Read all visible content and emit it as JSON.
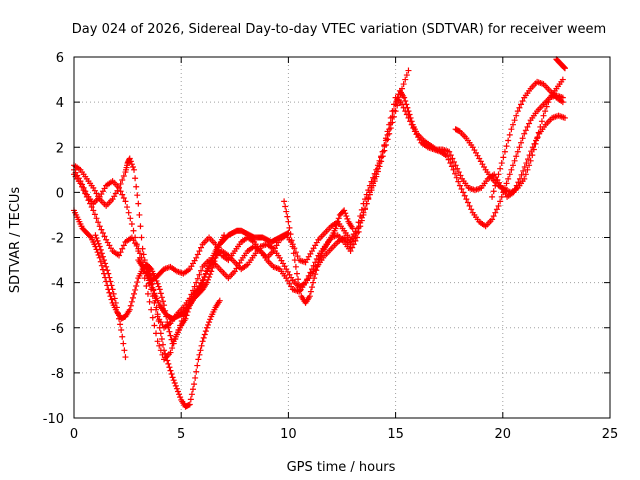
{
  "chart_data": {
    "type": "scatter",
    "title": "Day 024 of 2026, Sidereal Day-to-day VTEC variation (SDTVAR) for receiver weem",
    "xlabel": "GPS time / hours",
    "ylabel": "SDTVAR / TECUs",
    "xlim": [
      0,
      25
    ],
    "ylim": [
      -10,
      6
    ],
    "xticks": [
      0,
      5,
      10,
      15,
      20,
      25
    ],
    "yticks": [
      -10,
      -8,
      -6,
      -4,
      -2,
      0,
      2,
      4,
      6
    ],
    "xtick_labels": [
      "0",
      "5",
      "10",
      "15",
      "20",
      "25"
    ],
    "ytick_labels": [
      "-10",
      "-8",
      "-6",
      "-4",
      "-2",
      "0",
      "2",
      "4",
      "6"
    ],
    "grid": true,
    "marker": "plus",
    "color": "#ff0000",
    "series": [
      {
        "x": [
          0.0,
          0.3,
          0.6,
          0.9,
          1.2,
          1.5,
          1.8,
          2.1,
          2.4,
          2.5,
          2.6,
          2.8,
          3.0,
          3.2,
          3.4,
          3.6,
          3.8,
          4.0,
          4.2,
          4.5,
          4.8,
          5.1,
          5.4,
          5.7,
          6.0,
          6.3,
          6.6,
          6.9,
          7.2,
          7.5,
          7.8,
          8.1,
          8.4,
          8.7,
          9.0,
          9.3,
          9.6,
          9.9,
          10.2,
          10.5,
          10.8,
          11.1,
          11.4,
          11.7,
          12.0,
          12.3,
          12.6,
          12.9,
          13.2,
          13.5,
          13.8,
          14.1,
          14.4,
          14.7,
          15.0,
          15.2,
          15.4,
          15.6,
          15.8,
          16.0,
          16.3,
          16.6,
          16.9,
          17.2,
          17.5,
          17.8,
          18.1,
          18.4,
          18.7,
          19.0,
          19.3,
          19.6,
          19.9,
          20.2,
          20.5,
          20.8,
          21.1,
          21.4,
          21.7,
          22.0,
          22.3,
          22.6,
          22.9
        ],
        "y": [
          1.2,
          1.0,
          0.6,
          0.2,
          -0.3,
          -0.6,
          -0.3,
          0.2,
          0.9,
          1.3,
          1.5,
          1.0,
          -0.5,
          -2.5,
          -3.5,
          -3.9,
          -3.8,
          -3.6,
          -3.4,
          -3.3,
          -3.5,
          -3.6,
          -3.4,
          -2.9,
          -2.3,
          -2.0,
          -2.3,
          -2.8,
          -3.0,
          -2.6,
          -2.2,
          -2.0,
          -2.2,
          -2.6,
          -2.9,
          -2.6,
          -2.1,
          -1.9,
          -2.3,
          -3.0,
          -3.1,
          -2.6,
          -2.1,
          -1.8,
          -1.5,
          -1.3,
          -1.7,
          -2.1,
          -1.6,
          -0.5,
          0.3,
          1.0,
          1.8,
          2.8,
          3.9,
          4.5,
          4.2,
          3.6,
          3.0,
          2.6,
          2.3,
          2.1,
          1.9,
          1.9,
          1.8,
          1.2,
          0.6,
          0.2,
          0.1,
          0.2,
          0.6,
          0.8,
          0.3,
          -0.2,
          0.0,
          0.6,
          1.3,
          2.0,
          2.6,
          3.0,
          3.3,
          3.4,
          3.3
        ]
      },
      {
        "x": [
          0.0,
          0.3,
          0.6,
          0.9,
          1.2,
          1.5,
          1.8,
          2.1,
          2.4,
          2.7,
          3.0,
          3.3,
          3.6,
          3.9,
          4.2,
          4.5,
          4.8,
          5.1,
          5.4,
          5.7,
          6.0,
          6.3,
          6.6,
          6.9,
          7.2,
          7.5,
          7.8,
          8.1,
          8.4,
          8.7,
          9.0,
          9.3,
          9.6,
          9.9,
          10.2,
          10.5,
          10.8,
          11.1,
          11.4,
          11.7,
          12.0,
          12.3,
          12.6,
          12.9,
          13.2,
          13.5,
          13.8,
          14.1,
          14.4,
          14.7,
          15.0,
          15.3,
          15.6,
          15.9,
          16.2,
          16.5,
          16.8,
          17.1,
          17.4,
          17.7,
          18.0,
          18.3,
          18.6,
          18.9,
          19.2,
          19.5,
          19.8,
          20.1,
          20.4,
          20.7,
          21.0,
          21.3,
          21.6,
          21.9,
          22.2,
          22.5,
          22.8
        ],
        "y": [
          0.8,
          0.4,
          -0.2,
          -0.8,
          -1.5,
          -2.1,
          -2.6,
          -2.8,
          -2.2,
          -2.0,
          -2.5,
          -3.3,
          -4.3,
          -5.5,
          -6.0,
          -5.8,
          -5.4,
          -5.1,
          -4.7,
          -4.0,
          -3.3,
          -3.0,
          -3.2,
          -3.5,
          -3.8,
          -3.5,
          -3.0,
          -2.6,
          -2.4,
          -2.6,
          -3.0,
          -3.3,
          -3.4,
          -3.8,
          -4.3,
          -4.4,
          -4.0,
          -3.4,
          -2.8,
          -2.4,
          -2.0,
          -1.9,
          -2.2,
          -2.6,
          -2.0,
          -1.0,
          0.0,
          0.8,
          1.8,
          3.0,
          4.2,
          3.9,
          3.3,
          2.7,
          2.2,
          2.0,
          1.9,
          1.8,
          1.6,
          1.0,
          0.3,
          -0.3,
          -0.9,
          -1.3,
          -1.5,
          -1.2,
          -0.6,
          0.2,
          1.0,
          1.8,
          2.6,
          3.2,
          3.6,
          3.9,
          4.2,
          4.3,
          4.2
        ]
      },
      {
        "x": [
          0.0,
          0.3,
          0.6,
          0.9,
          1.2,
          1.5,
          1.8,
          2.1,
          2.4,
          2.7,
          3.0,
          3.3,
          3.6,
          3.9,
          4.2,
          4.5,
          4.8,
          5.1,
          5.4,
          5.7,
          6.0,
          6.3,
          6.6,
          6.9,
          7.2,
          7.5,
          7.8,
          8.1,
          8.4,
          8.7,
          9.0,
          9.3,
          9.6,
          9.9,
          10.2,
          10.5,
          10.8,
          11.1,
          11.4,
          11.7,
          12.0,
          12.3,
          12.6,
          12.9,
          13.2,
          13.5,
          13.8,
          14.1,
          14.4,
          14.7,
          15.0,
          15.3,
          15.6
        ],
        "y": [
          1.0,
          0.5,
          -0.1,
          -0.5,
          -0.2,
          0.3,
          0.5,
          0.2,
          -0.4,
          -1.4,
          -2.6,
          -3.8,
          -5.2,
          -6.6,
          -7.4,
          -7.1,
          -6.3,
          -5.5,
          -4.8,
          -4.4,
          -3.9,
          -3.3,
          -2.8,
          -2.6,
          -2.8,
          -3.1,
          -3.4,
          -3.2,
          -2.8,
          -2.4,
          -2.3,
          -2.5,
          -2.9,
          -3.4,
          -3.9,
          -4.2,
          -4.0,
          -3.6,
          -3.2,
          -2.8,
          -2.5,
          -2.2,
          -2.0,
          -2.3,
          -1.8,
          -0.9,
          -0.1,
          0.7,
          1.6,
          2.6,
          3.6,
          4.6,
          5.4
        ]
      },
      {
        "x": [
          0.0,
          0.2,
          0.4,
          0.6,
          0.8,
          1.0,
          1.2,
          1.4,
          1.6,
          1.8,
          2.0,
          2.2,
          2.4,
          2.6,
          2.8,
          3.0,
          3.2,
          3.4,
          3.6,
          3.8,
          4.0,
          4.2,
          4.4,
          4.6,
          4.8,
          5.0,
          5.2,
          5.4,
          5.6,
          5.8,
          6.0,
          6.2,
          6.4,
          6.6,
          6.8,
          7.0,
          7.2,
          7.4,
          7.6,
          7.8,
          8.0,
          8.2,
          8.4,
          8.6,
          8.8,
          9.0,
          9.2,
          9.4,
          9.6,
          9.8,
          10.0
        ],
        "y": [
          -0.8,
          -1.2,
          -1.6,
          -1.8,
          -2.0,
          -2.4,
          -2.9,
          -3.6,
          -4.3,
          -4.9,
          -5.3,
          -5.6,
          -5.5,
          -5.2,
          -4.5,
          -3.8,
          -3.4,
          -3.2,
          -3.4,
          -3.8,
          -4.3,
          -5.0,
          -6.0,
          -6.7,
          -6.3,
          -5.9,
          -5.6,
          -5.0,
          -4.5,
          -4.3,
          -4.0,
          -3.5,
          -3.0,
          -2.6,
          -2.3,
          -2.1,
          -1.9,
          -1.8,
          -1.7,
          -1.7,
          -1.8,
          -1.9,
          -2.0,
          -2.0,
          -2.0,
          -2.1,
          -2.2,
          -2.1,
          -2.0,
          -1.9,
          -1.8
        ]
      },
      {
        "x": [
          1.0,
          1.2,
          1.4,
          1.6,
          1.8,
          2.0,
          2.2,
          2.4
        ],
        "y": [
          -1.9,
          -2.4,
          -3.0,
          -3.6,
          -4.3,
          -5.1,
          -6.1,
          -7.3
        ]
      },
      {
        "x": [
          3.4,
          3.6,
          3.8,
          4.0,
          4.2,
          4.4,
          4.6,
          4.8,
          5.0,
          5.2,
          5.4,
          5.6,
          5.8,
          6.0,
          6.2,
          6.4,
          6.6,
          6.8
        ],
        "y": [
          -3.2,
          -3.8,
          -4.8,
          -6.0,
          -7.0,
          -7.6,
          -8.2,
          -8.7,
          -9.2,
          -9.5,
          -9.4,
          -8.5,
          -7.4,
          -6.6,
          -6.0,
          -5.5,
          -5.1,
          -4.8
        ]
      },
      {
        "x": [
          3.0,
          3.2,
          3.4,
          3.6,
          3.8,
          4.0,
          4.2,
          4.4,
          4.6,
          4.8,
          5.0,
          5.2,
          5.4,
          5.6,
          5.8,
          6.0,
          6.2,
          6.4,
          6.6,
          6.8,
          7.0
        ],
        "y": [
          -3.0,
          -3.3,
          -3.7,
          -4.1,
          -4.6,
          -5.0,
          -5.3,
          -5.5,
          -5.6,
          -5.5,
          -5.4,
          -5.3,
          -5.0,
          -4.7,
          -4.5,
          -4.3,
          -4.0,
          -3.5,
          -2.9,
          -2.3,
          -1.9
        ]
      },
      {
        "x": [
          9.8,
          10.0,
          10.2,
          10.4,
          10.6,
          10.8,
          11.0,
          11.2,
          11.4,
          11.6,
          11.8,
          12.0,
          12.2,
          12.4,
          12.6,
          12.8,
          13.0
        ],
        "y": [
          -0.4,
          -1.3,
          -2.4,
          -3.6,
          -4.6,
          -4.9,
          -4.6,
          -3.8,
          -3.1,
          -2.6,
          -2.3,
          -2.0,
          -1.6,
          -1.0,
          -0.8,
          -1.3,
          -1.6
        ]
      },
      {
        "x": [
          17.8,
          18.0,
          18.3,
          18.6,
          18.9,
          19.2,
          19.5,
          19.8,
          20.1,
          20.4,
          20.7,
          21.0,
          21.3,
          21.6,
          21.9,
          22.2,
          22.5,
          22.8
        ],
        "y": [
          2.8,
          2.7,
          2.4,
          2.0,
          1.5,
          1.0,
          0.6,
          0.3,
          0.1,
          0.0,
          0.2,
          0.6,
          1.4,
          2.4,
          3.4,
          4.2,
          4.6,
          5.0
        ]
      },
      {
        "x": [
          19.5,
          19.8,
          20.1,
          20.4,
          20.7,
          21.0,
          21.3,
          21.6,
          21.9,
          22.2,
          22.5,
          22.8
        ],
        "y": [
          -0.2,
          0.8,
          1.8,
          2.8,
          3.6,
          4.2,
          4.6,
          4.9,
          4.8,
          4.5,
          4.2,
          4.0
        ]
      },
      {
        "x": [
          22.5,
          22.6,
          22.7,
          22.8,
          22.9
        ],
        "y": [
          5.9,
          5.8,
          5.7,
          5.6,
          5.5
        ]
      }
    ]
  }
}
